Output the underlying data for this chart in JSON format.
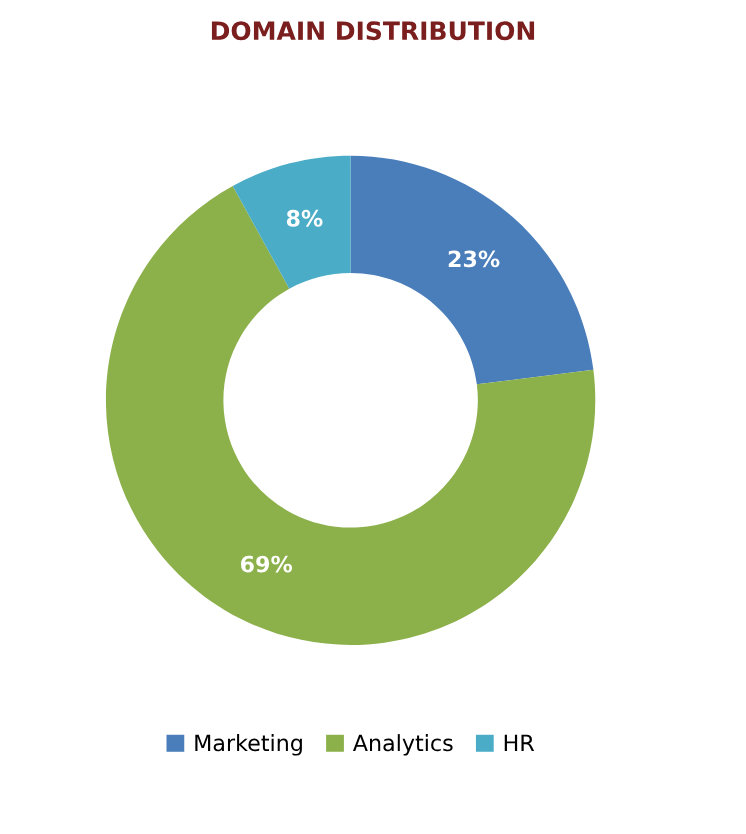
{
  "chart_data": {
    "type": "donut",
    "title": "DOMAIN DISTRIBUTION",
    "categories": [
      "Marketing",
      "Analytics",
      "HR"
    ],
    "values": [
      23,
      69,
      8
    ],
    "colors": [
      "#4a7ebb",
      "#8cb04a",
      "#4aacc6"
    ],
    "value_labels": [
      "23%",
      "69%",
      "8%"
    ],
    "legend": "bottom"
  }
}
